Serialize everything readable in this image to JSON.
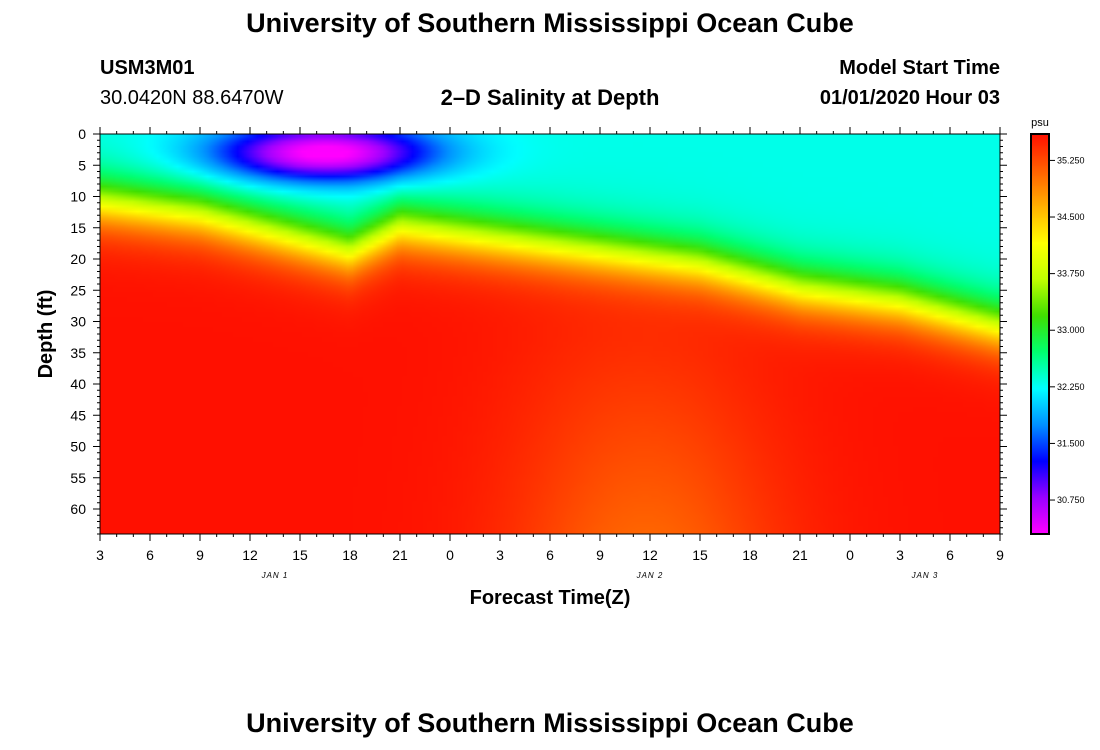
{
  "title": "University of Southern Mississippi Ocean Cube",
  "footer_title": "University of Southern Mississippi Ocean Cube",
  "station_id": "USM3M01",
  "station_coords": "30.0420N 88.6470W",
  "plot_title": "2–D Salinity at Depth",
  "model_start_label": "Model Start Time",
  "model_start_value": "01/01/2020 Hour 03",
  "chart_data": {
    "type": "heatmap",
    "title": "2–D Salinity at Depth",
    "xlabel": "Forecast Time(Z)",
    "ylabel": "Depth (ft)",
    "x_ticks": [
      "3",
      "6",
      "9",
      "12",
      "15",
      "18",
      "21",
      "0",
      "3",
      "6",
      "9",
      "12",
      "15",
      "18",
      "21",
      "0",
      "3",
      "6",
      "9"
    ],
    "x_range_hours": [
      0,
      54
    ],
    "date_labels": [
      {
        "text": "JAN 1",
        "hour": 10.5
      },
      {
        "text": "JAN 2",
        "hour": 33
      },
      {
        "text": "JAN 3",
        "hour": 49.5
      }
    ],
    "y_ticks": [
      0,
      5,
      10,
      15,
      20,
      25,
      30,
      35,
      40,
      45,
      50,
      55,
      60
    ],
    "y_range": [
      0,
      64
    ],
    "colorbar": {
      "unit": "psu",
      "min": 30.3,
      "max": 35.6,
      "tick_labels": [
        "35.250",
        "34.500",
        "33.750",
        "33.000",
        "32.250",
        "31.500",
        "30.750"
      ],
      "tick_values": [
        35.25,
        34.5,
        33.75,
        33.0,
        32.25,
        31.5,
        30.75
      ],
      "colors": [
        "#ff00ff",
        "#9a00ff",
        "#0000ff",
        "#0090ff",
        "#00ffff",
        "#00ff70",
        "#40e000",
        "#c0ff00",
        "#ffff00",
        "#ffb000",
        "#ff6000",
        "#ff1000"
      ]
    },
    "fresh_layer": {
      "note": "low-salinity surface plume",
      "min_value": 30.3,
      "center_hour": 13.5,
      "center_depth": 3
    },
    "halocline_depth_ft": [
      {
        "hour": 0,
        "depth": 11
      },
      {
        "hour": 6,
        "depth": 13
      },
      {
        "hour": 12,
        "depth": 17
      },
      {
        "hour": 15,
        "depth": 19
      },
      {
        "hour": 18,
        "depth": 15
      },
      {
        "hour": 24,
        "depth": 17
      },
      {
        "hour": 30,
        "depth": 19
      },
      {
        "hour": 36,
        "depth": 21
      },
      {
        "hour": 42,
        "depth": 25
      },
      {
        "hour": 48,
        "depth": 27
      },
      {
        "hour": 54,
        "depth": 31
      }
    ]
  }
}
